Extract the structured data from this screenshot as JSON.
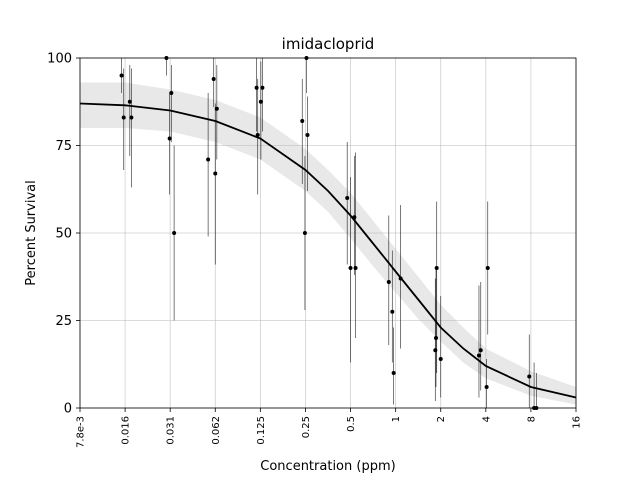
{
  "chart_data": {
    "type": "scatter",
    "title": "imidacloprid",
    "xlabel": "Concentration (ppm)",
    "ylabel": "Percent Survival",
    "x_scale": "log2",
    "xlim": [
      0.0078125,
      16
    ],
    "ylim": [
      0,
      100
    ],
    "grid": true,
    "x_ticks": [
      {
        "value": 0.0078125,
        "label": "7.8e-3"
      },
      {
        "value": 0.015625,
        "label": "0.016"
      },
      {
        "value": 0.03125,
        "label": "0.031"
      },
      {
        "value": 0.0625,
        "label": "0.062"
      },
      {
        "value": 0.125,
        "label": "0.125"
      },
      {
        "value": 0.25,
        "label": "0.25"
      },
      {
        "value": 0.5,
        "label": "0.5"
      },
      {
        "value": 1,
        "label": "1"
      },
      {
        "value": 2,
        "label": "2"
      },
      {
        "value": 4,
        "label": "4"
      },
      {
        "value": 8,
        "label": "8"
      },
      {
        "value": 16,
        "label": "16"
      }
    ],
    "y_ticks": [
      {
        "value": 0,
        "label": "0"
      },
      {
        "value": 25,
        "label": "25"
      },
      {
        "value": 50,
        "label": "50"
      },
      {
        "value": 75,
        "label": "75"
      },
      {
        "value": 100,
        "label": "100"
      }
    ],
    "fit_curve": {
      "x": [
        0.0078125,
        0.015625,
        0.03125,
        0.0625,
        0.125,
        0.25,
        0.354,
        0.5,
        0.707,
        1,
        1.414,
        2,
        2.83,
        4,
        8,
        16
      ],
      "y": [
        87,
        86.5,
        85,
        82,
        77,
        68,
        62,
        55,
        47,
        39,
        31,
        23,
        17,
        12,
        6,
        3
      ],
      "lower": [
        80,
        80,
        79,
        76,
        71,
        62,
        56,
        48.5,
        40.5,
        33,
        25.5,
        19,
        13,
        8.5,
        3.5,
        1
      ],
      "upper": [
        93,
        93,
        91,
        88,
        83,
        74,
        68,
        61.5,
        53.5,
        45.5,
        37.5,
        29.5,
        23,
        17,
        10.5,
        6
      ]
    },
    "points": [
      {
        "x": 0.0148,
        "y": 95,
        "low": 90,
        "high": 100
      },
      {
        "x": 0.0153,
        "y": 83,
        "low": 68,
        "high": 97
      },
      {
        "x": 0.0168,
        "y": 87.5,
        "low": 72,
        "high": 98
      },
      {
        "x": 0.0172,
        "y": 83,
        "low": 63,
        "high": 97
      },
      {
        "x": 0.0295,
        "y": 100,
        "low": 95,
        "high": 100
      },
      {
        "x": 0.031,
        "y": 77,
        "low": 61,
        "high": 90
      },
      {
        "x": 0.0318,
        "y": 90,
        "low": 76,
        "high": 98
      },
      {
        "x": 0.0332,
        "y": 50,
        "low": 25,
        "high": 75
      },
      {
        "x": 0.056,
        "y": 71,
        "low": 49,
        "high": 90
      },
      {
        "x": 0.061,
        "y": 94,
        "low": 86,
        "high": 100
      },
      {
        "x": 0.0625,
        "y": 67,
        "low": 41,
        "high": 87
      },
      {
        "x": 0.064,
        "y": 85.5,
        "low": 71,
        "high": 98
      },
      {
        "x": 0.118,
        "y": 91.5,
        "low": 79,
        "high": 100
      },
      {
        "x": 0.12,
        "y": 78,
        "low": 61,
        "high": 94
      },
      {
        "x": 0.126,
        "y": 87.5,
        "low": 71,
        "high": 99
      },
      {
        "x": 0.129,
        "y": 91.5,
        "low": 79,
        "high": 100
      },
      {
        "x": 0.238,
        "y": 82,
        "low": 64,
        "high": 94
      },
      {
        "x": 0.248,
        "y": 50,
        "low": 28,
        "high": 72
      },
      {
        "x": 0.254,
        "y": 100,
        "low": 90,
        "high": 100
      },
      {
        "x": 0.258,
        "y": 78,
        "low": 62,
        "high": 89
      },
      {
        "x": 0.475,
        "y": 60,
        "low": 41,
        "high": 76
      },
      {
        "x": 0.5,
        "y": 40,
        "low": 13,
        "high": 66
      },
      {
        "x": 0.53,
        "y": 54.5,
        "low": 38,
        "high": 72
      },
      {
        "x": 0.54,
        "y": 40,
        "low": 20,
        "high": 73
      },
      {
        "x": 0.9,
        "y": 36,
        "low": 18,
        "high": 55
      },
      {
        "x": 0.95,
        "y": 27.5,
        "low": 13,
        "high": 45
      },
      {
        "x": 0.97,
        "y": 10,
        "low": 1,
        "high": 23
      },
      {
        "x": 1.08,
        "y": 37,
        "low": 17,
        "high": 58
      },
      {
        "x": 1.84,
        "y": 16.5,
        "low": 2,
        "high": 37
      },
      {
        "x": 1.86,
        "y": 20,
        "low": 6,
        "high": 40
      },
      {
        "x": 1.88,
        "y": 40,
        "low": 10,
        "high": 59
      },
      {
        "x": 2.0,
        "y": 14,
        "low": 3,
        "high": 32
      },
      {
        "x": 3.6,
        "y": 15,
        "low": 3,
        "high": 35
      },
      {
        "x": 3.7,
        "y": 16.5,
        "low": 5,
        "high": 36
      },
      {
        "x": 4.05,
        "y": 6,
        "low": 0,
        "high": 14
      },
      {
        "x": 4.12,
        "y": 40,
        "low": 21,
        "high": 59
      },
      {
        "x": 7.8,
        "y": 9,
        "low": 0,
        "high": 21
      },
      {
        "x": 8.4,
        "y": 0,
        "low": 0,
        "high": 13
      },
      {
        "x": 8.7,
        "y": 0,
        "low": 0,
        "high": 10
      }
    ]
  }
}
